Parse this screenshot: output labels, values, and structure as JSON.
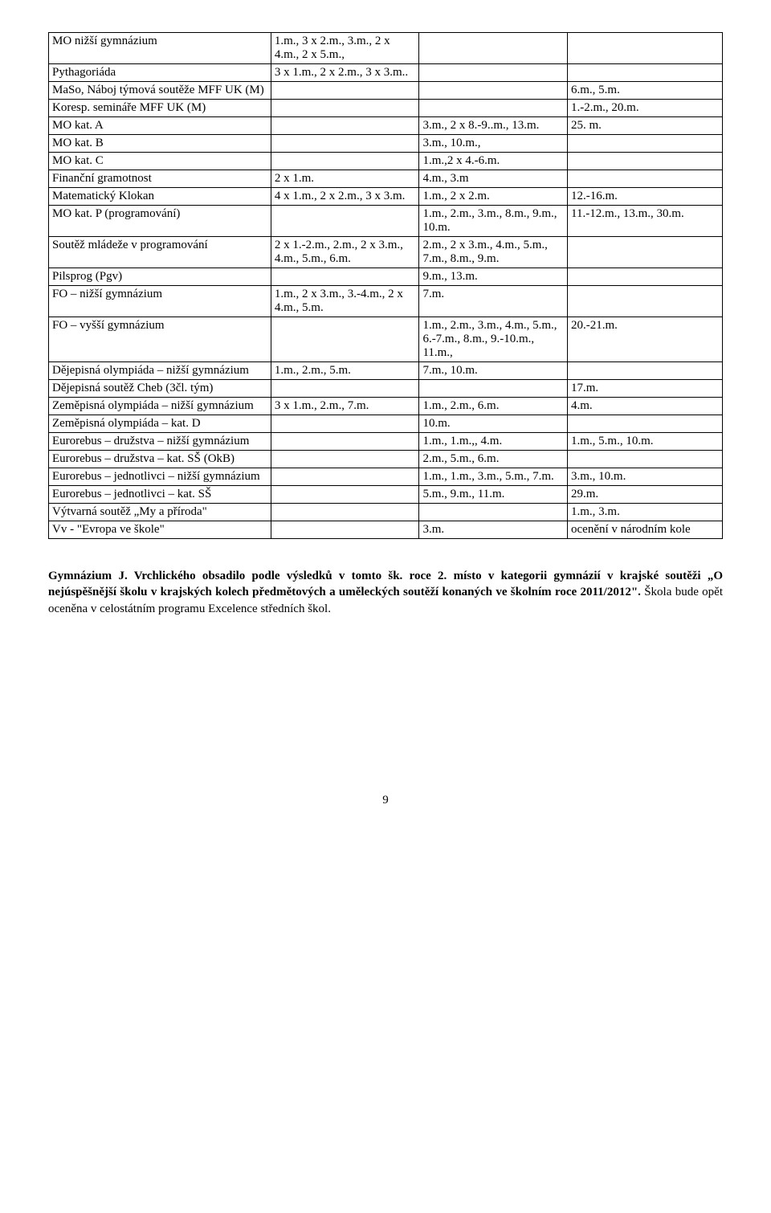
{
  "rows": [
    {
      "c1": "MO nižší gymnázium",
      "c2": "1.m., 3 x 2.m., 3.m., 2 x 4.m., 2 x 5.m.,",
      "c3": "",
      "c4": ""
    },
    {
      "c1": "Pythagoriáda",
      "c2": "3 x 1.m., 2 x 2.m., 3 x 3.m..",
      "c3": "",
      "c4": ""
    },
    {
      "c1": "MaSo, Náboj týmová soutěže MFF UK (M)",
      "c2": "",
      "c3": "",
      "c4": "6.m., 5.m."
    },
    {
      "c1": "Koresp. semináře MFF UK (M)",
      "c2": "",
      "c3": "",
      "c4": "1.-2.m., 20.m."
    },
    {
      "c1": "MO kat. A",
      "c2": "",
      "c3": "3.m., 2 x 8.-9..m., 13.m.",
      "c4": "25. m."
    },
    {
      "c1": "MO kat. B",
      "c2": "",
      "c3": "3.m., 10.m.,",
      "c4": ""
    },
    {
      "c1": "MO kat. C",
      "c2": "",
      "c3": "1.m.,2 x 4.-6.m.",
      "c4": ""
    },
    {
      "c1": "Finanční gramotnost",
      "c2": "2 x 1.m.",
      "c3": "4.m., 3.m",
      "c4": ""
    },
    {
      "c1": "Matematický Klokan",
      "c2": "4 x 1.m., 2 x 2.m., 3 x 3.m.",
      "c3": "1.m., 2 x 2.m.",
      "c4": "12.-16.m."
    },
    {
      "c1": "MO kat. P (programování)",
      "c2": "",
      "c3": "1.m., 2.m., 3.m., 8.m., 9.m., 10.m.",
      "c4": "11.-12.m., 13.m., 30.m."
    },
    {
      "c1": "Soutěž mládeže v programování",
      "c2": "2 x 1.-2.m., 2.m., 2 x 3.m., 4.m., 5.m., 6.m.",
      "c3": "2.m., 2 x 3.m., 4.m., 5.m., 7.m., 8.m., 9.m.",
      "c4": ""
    },
    {
      "c1": "Pilsprog (Pgv)",
      "c2": "",
      "c3": "9.m., 13.m.",
      "c4": ""
    },
    {
      "c1": "FO – nižší gymnázium",
      "c2": "1.m., 2 x 3.m., 3.-4.m., 2 x 4.m., 5.m.",
      "c3": "7.m.",
      "c4": ""
    },
    {
      "c1": "FO – vyšší gymnázium",
      "c2": "",
      "c3": "1.m., 2.m., 3.m., 4.m., 5.m., 6.-7.m., 8.m., 9.-10.m., 11.m.,",
      "c4": "20.-21.m."
    },
    {
      "c1": "Dějepisná olympiáda – nižší gymnázium",
      "c2": "1.m., 2.m., 5.m.",
      "c3": "7.m., 10.m.",
      "c4": ""
    },
    {
      "c1": "Dějepisná soutěž Cheb (3čl. tým)",
      "c2": "",
      "c3": "",
      "c4": "17.m."
    },
    {
      "c1": "Zeměpisná olympiáda – nižší gymnázium",
      "c2": "3 x 1.m., 2.m., 7.m.",
      "c3": "1.m., 2.m., 6.m.",
      "c4": "4.m."
    },
    {
      "c1": "Zeměpisná olympiáda – kat. D",
      "c2": "",
      "c3": "10.m.",
      "c4": ""
    },
    {
      "c1": "Eurorebus – družstva – nižší gymnázium",
      "c2": "",
      "c3": "1.m., 1.m.,, 4.m.",
      "c4": "1.m., 5.m., 10.m."
    },
    {
      "c1": "Eurorebus – družstva – kat. SŠ (OkB)",
      "c2": "",
      "c3": "2.m., 5.m., 6.m.",
      "c4": ""
    },
    {
      "c1": "Eurorebus – jednotlivci – nižší gymnázium",
      "c2": "",
      "c3": "1.m., 1.m., 3.m., 5.m., 7.m.",
      "c4": "3.m., 10.m."
    },
    {
      "c1": "Eurorebus – jednotlivci – kat. SŠ",
      "c2": "",
      "c3": "5.m., 9.m., 11.m.",
      "c4": "29.m."
    },
    {
      "c1": "Výtvarná soutěž „My a příroda\"",
      "c2": "",
      "c3": "",
      "c4": "1.m., 3.m."
    },
    {
      "c1": "Vv - \"Evropa ve škole\"",
      "c2": "",
      "c3": "3.m.",
      "c4": "ocenění v národním kole"
    }
  ],
  "paragraph_bold": "Gymnázium J. Vrchlického obsadilo  podle výsledků v tomto šk. roce 2. místo v kategorii gymnázií v krajské soutěži „O nejúspěšnější školu v krajských kolech předmětových a uměleckých soutěží konaných ve školním roce 2011/2012\".",
  "paragraph_rest": " Škola bude opět oceněna v celostátním programu Excelence středních škol.",
  "page_number": "9"
}
